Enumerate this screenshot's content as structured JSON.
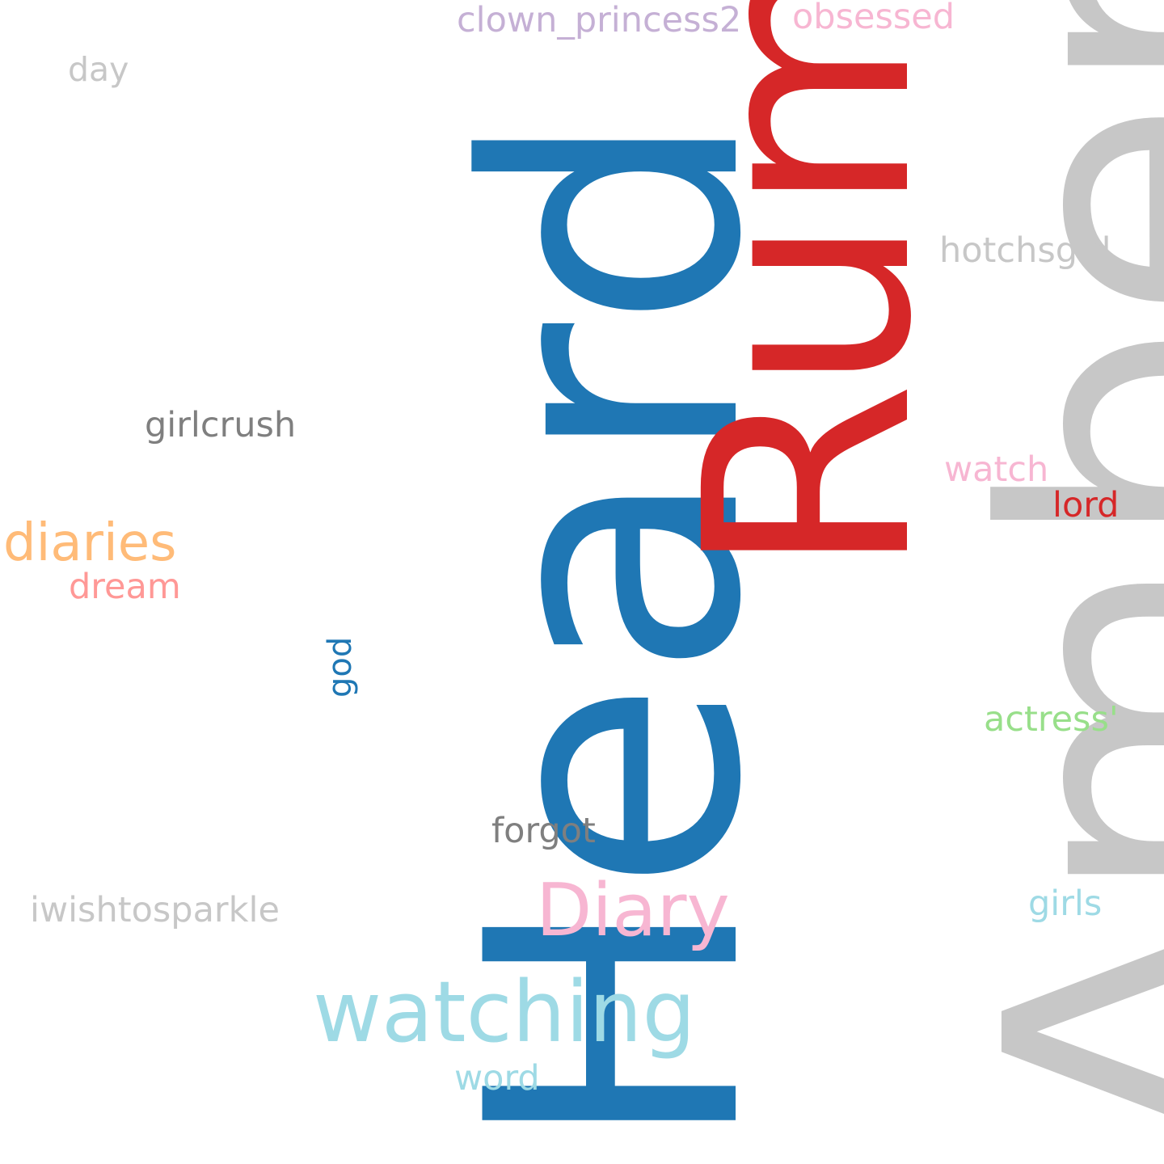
{
  "words": {
    "heard": "Heard",
    "rum": "Rum",
    "amber": "Amber",
    "clown_princess2": "clown_princess2",
    "obsessed": "obsessed",
    "day": "day",
    "hotchsgirl": "hotchsgirl",
    "girlcrush": "girlcrush",
    "watch": "watch",
    "lord": "lord",
    "diaries": "diaries",
    "dream": "dream",
    "god": "god",
    "actress": "actress'",
    "forgot": "forgot",
    "diary": "Diary",
    "iwishtosparkle": "iwishtosparkle",
    "girls": "girls",
    "watching": "watching",
    "word": "word"
  },
  "colors": {
    "blue": "#1f77b4",
    "red": "#d62728",
    "light_grey": "#c7c7c7",
    "dark_grey": "#7f7f7f",
    "pink": "#f7b6d2",
    "lilac": "#c5b0d5",
    "orange": "#ffbb78",
    "salmon": "#ff9896",
    "cyan": "#9edae5",
    "green": "#98df8a",
    "background": "#ffffff"
  }
}
